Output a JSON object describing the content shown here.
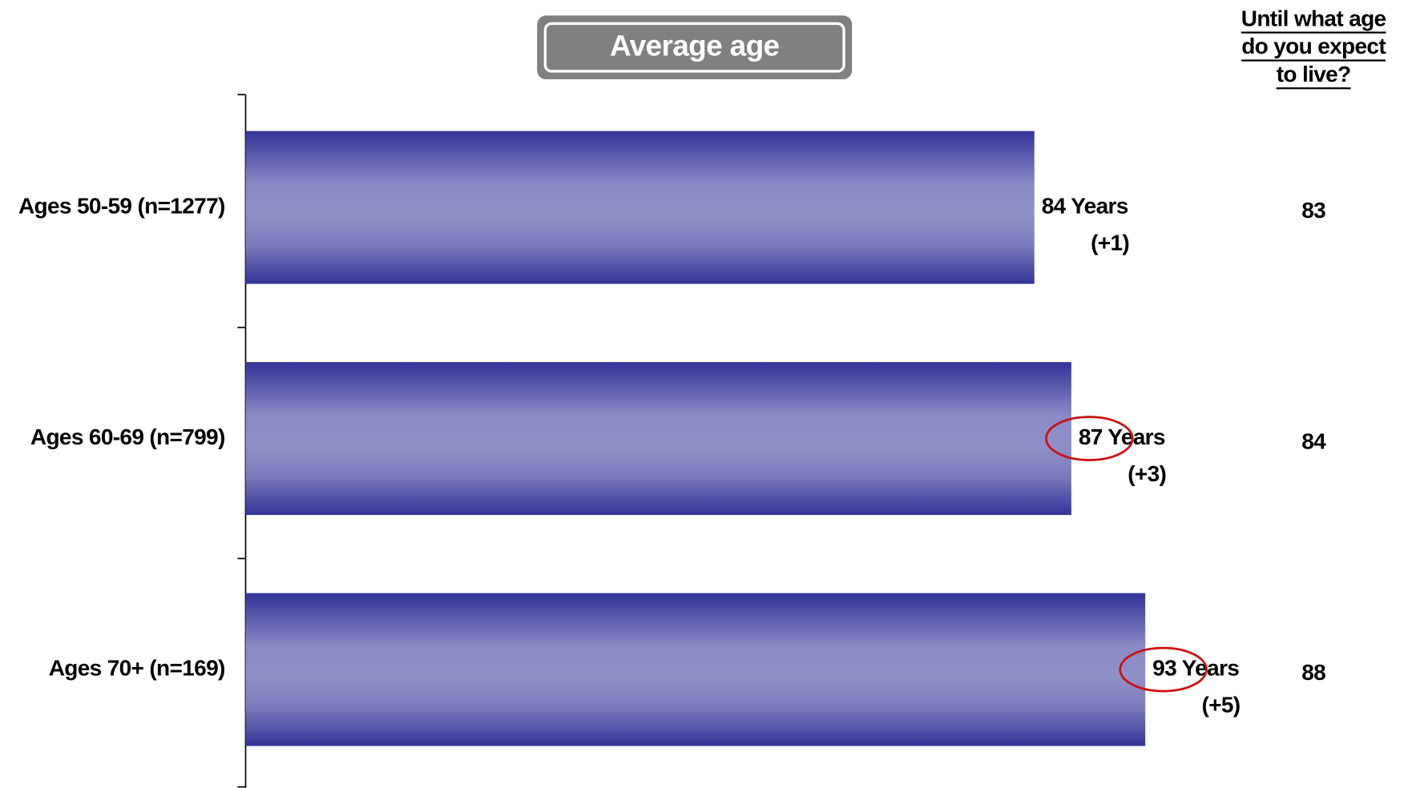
{
  "chart_data": {
    "type": "bar",
    "orientation": "horizontal",
    "title": "Average age",
    "categories": [
      "Ages 50-59 (n=1277)",
      "Ages 60-69 (n=799)",
      "Ages 70+ (n=169)"
    ],
    "values": [
      84,
      87,
      93
    ],
    "value_labels": [
      "84  Years",
      "87 Years",
      "93 Years"
    ],
    "change_labels": [
      "(+1)",
      "(+3)",
      "(+5)"
    ],
    "xlim": [
      20,
      93
    ],
    "color": "#333399",
    "expected_title": [
      "Until what age",
      "do you expect",
      "to live?"
    ],
    "expected_values": [
      83,
      84,
      88
    ]
  }
}
